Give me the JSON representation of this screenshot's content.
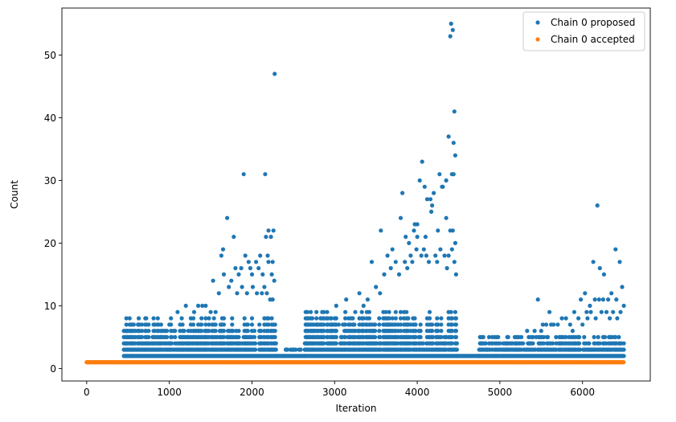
{
  "chart_data": {
    "type": "scatter",
    "xlabel": "Iteration",
    "ylabel": "Count",
    "xlim": [
      -300,
      6820
    ],
    "ylim": [
      -2,
      57.5
    ],
    "xticks": [
      0,
      1000,
      2000,
      3000,
      4000,
      5000,
      6000
    ],
    "yticks": [
      0,
      10,
      20,
      30,
      40,
      50
    ],
    "grid": false,
    "legend_position": "top-right",
    "series": [
      {
        "name": "Chain 0 proposed",
        "color": "#1f77b4",
        "points": [
          [
            1900,
            31
          ],
          [
            2160,
            31
          ],
          [
            2275,
            47
          ],
          [
            1700,
            24
          ],
          [
            1780,
            21
          ],
          [
            1650,
            19
          ],
          [
            1630,
            18
          ],
          [
            1530,
            14
          ],
          [
            1200,
            10
          ],
          [
            1400,
            10
          ],
          [
            2200,
            22
          ],
          [
            2260,
            22
          ],
          [
            2170,
            21
          ],
          [
            2230,
            21
          ],
          [
            2100,
            18
          ],
          [
            2190,
            18
          ],
          [
            1960,
            17
          ],
          [
            2050,
            17
          ],
          [
            2250,
            17
          ],
          [
            3560,
            22
          ],
          [
            3640,
            18
          ],
          [
            3700,
            19
          ],
          [
            3820,
            28
          ],
          [
            3800,
            24
          ],
          [
            3970,
            23
          ],
          [
            4000,
            23
          ],
          [
            4060,
            33
          ],
          [
            4030,
            30
          ],
          [
            4090,
            29
          ],
          [
            4120,
            27
          ],
          [
            4160,
            27
          ],
          [
            4180,
            26
          ],
          [
            4170,
            25
          ],
          [
            4270,
            31
          ],
          [
            4310,
            29
          ],
          [
            4350,
            24
          ],
          [
            4380,
            37
          ],
          [
            4400,
            53
          ],
          [
            4410,
            55
          ],
          [
            4430,
            54
          ],
          [
            4440,
            36
          ],
          [
            4450,
            41
          ],
          [
            4460,
            34
          ],
          [
            4350,
            30
          ],
          [
            4420,
            31
          ],
          [
            4440,
            31
          ],
          [
            4300,
            29
          ],
          [
            4200,
            28
          ],
          [
            4100,
            21
          ],
          [
            4000,
            21
          ],
          [
            4250,
            22
          ],
          [
            3960,
            22
          ],
          [
            3900,
            20
          ],
          [
            3860,
            21
          ],
          [
            4400,
            22
          ],
          [
            4430,
            22
          ],
          [
            4460,
            20
          ],
          [
            4380,
            18
          ],
          [
            3450,
            17
          ],
          [
            3300,
            12
          ],
          [
            3140,
            11
          ],
          [
            3020,
            10
          ],
          [
            2900,
            8
          ],
          [
            2680,
            8
          ],
          [
            2650,
            6
          ],
          [
            2720,
            6
          ],
          [
            2800,
            5
          ],
          [
            2410,
            3
          ],
          [
            2470,
            3
          ],
          [
            2570,
            3
          ],
          [
            2660,
            4
          ],
          [
            2780,
            7
          ],
          [
            2840,
            4
          ],
          [
            4760,
            2
          ],
          [
            4800,
            2
          ],
          [
            4850,
            3
          ],
          [
            4950,
            3
          ],
          [
            5000,
            4
          ],
          [
            5230,
            5
          ],
          [
            5420,
            6
          ],
          [
            5460,
            11
          ],
          [
            5600,
            9
          ],
          [
            5500,
            6
          ],
          [
            5700,
            7
          ],
          [
            5900,
            9
          ],
          [
            5980,
            11
          ],
          [
            6030,
            12
          ],
          [
            6090,
            10
          ],
          [
            6130,
            17
          ],
          [
            6180,
            26
          ],
          [
            6210,
            16
          ],
          [
            6260,
            15
          ],
          [
            6310,
            11
          ],
          [
            6400,
            19
          ],
          [
            6450,
            17
          ],
          [
            6480,
            13
          ],
          [
            6500,
            10
          ],
          [
            6410,
            11
          ],
          [
            6350,
            12
          ],
          [
            6250,
            11
          ],
          [
            6150,
            11
          ],
          [
            6200,
            11
          ],
          [
            6050,
            9
          ],
          [
            5800,
            8
          ],
          [
            5330,
            6
          ],
          [
            5150,
            4
          ],
          [
            5100,
            3
          ],
          [
            4900,
            4
          ],
          [
            4950,
            2
          ],
          [
            5050,
            2
          ],
          [
            1100,
            9
          ],
          [
            1150,
            8
          ],
          [
            1000,
            7
          ],
          [
            1050,
            6
          ],
          [
            900,
            5
          ],
          [
            800,
            5
          ],
          [
            760,
            4
          ],
          [
            680,
            4
          ],
          [
            700,
            3
          ],
          [
            650,
            3
          ],
          [
            550,
            2
          ],
          [
            480,
            2
          ],
          [
            1300,
            9
          ],
          [
            1350,
            10
          ],
          [
            1440,
            10
          ],
          [
            1500,
            9
          ],
          [
            1560,
            9
          ],
          [
            1600,
            12
          ],
          [
            1660,
            15
          ],
          [
            1720,
            13
          ],
          [
            1750,
            14
          ],
          [
            1800,
            16
          ],
          [
            1840,
            15
          ],
          [
            1870,
            16
          ],
          [
            1920,
            18
          ],
          [
            1980,
            16
          ],
          [
            2000,
            15
          ],
          [
            2080,
            16
          ],
          [
            2130,
            15
          ],
          [
            2150,
            13
          ],
          [
            2200,
            17
          ],
          [
            2240,
            15
          ],
          [
            2270,
            14
          ],
          [
            1820,
            12
          ],
          [
            1880,
            13
          ],
          [
            1940,
            12
          ],
          [
            2010,
            13
          ],
          [
            2060,
            12
          ],
          [
            2120,
            12
          ],
          [
            2180,
            12
          ],
          [
            2220,
            11
          ],
          [
            2250,
            11
          ],
          [
            3200,
            8
          ],
          [
            3250,
            9
          ],
          [
            3350,
            10
          ],
          [
            3400,
            11
          ],
          [
            3500,
            13
          ],
          [
            3550,
            12
          ],
          [
            3600,
            15
          ],
          [
            3680,
            16
          ],
          [
            3740,
            17
          ],
          [
            3780,
            15
          ],
          [
            3850,
            17
          ],
          [
            3880,
            16
          ],
          [
            3920,
            18
          ],
          [
            3940,
            17
          ],
          [
            3990,
            19
          ],
          [
            4050,
            18
          ],
          [
            4080,
            19
          ],
          [
            4110,
            18
          ],
          [
            4140,
            17
          ],
          [
            4220,
            18
          ],
          [
            4240,
            17
          ],
          [
            4280,
            19
          ],
          [
            4330,
            18
          ],
          [
            4360,
            16
          ],
          [
            4420,
            19
          ],
          [
            4450,
            17
          ],
          [
            4470,
            15
          ],
          [
            3150,
            6
          ],
          [
            3100,
            7
          ],
          [
            3050,
            7
          ],
          [
            2950,
            6
          ],
          [
            3080,
            5
          ],
          [
            3180,
            7
          ],
          [
            3230,
            7
          ],
          [
            3300,
            6
          ],
          [
            2870,
            5
          ],
          [
            2930,
            4
          ],
          [
            2990,
            4
          ],
          [
            5520,
            7
          ],
          [
            5560,
            7
          ],
          [
            5620,
            7
          ],
          [
            5650,
            7
          ],
          [
            5750,
            8
          ],
          [
            5850,
            7
          ],
          [
            5880,
            6
          ],
          [
            5950,
            8
          ],
          [
            6000,
            7
          ],
          [
            6060,
            8
          ],
          [
            6100,
            9
          ],
          [
            6160,
            8
          ],
          [
            6230,
            9
          ],
          [
            6290,
            9
          ],
          [
            6330,
            8
          ],
          [
            6370,
            9
          ],
          [
            6420,
            8
          ],
          [
            6460,
            9
          ],
          [
            5350,
            4
          ],
          [
            5380,
            4
          ],
          [
            5400,
            5
          ],
          [
            5440,
            5
          ],
          [
            5280,
            4
          ],
          [
            5200,
            3
          ],
          [
            5050,
            3
          ]
        ],
        "bands": [
          {
            "x_start": 450,
            "x_end": 2290,
            "min": 2,
            "max": 8,
            "note": "dense"
          },
          {
            "x_start": 2290,
            "x_end": 2390,
            "min": 2,
            "max": 2
          },
          {
            "x_start": 2390,
            "x_end": 2640,
            "min": 2,
            "max": 3
          },
          {
            "x_start": 2640,
            "x_end": 4480,
            "min": 2,
            "max": 9
          },
          {
            "x_start": 4480,
            "x_end": 4750,
            "min": 2,
            "max": 2
          },
          {
            "x_start": 4750,
            "x_end": 6500,
            "min": 2,
            "max": 5
          }
        ]
      },
      {
        "name": "Chain 0 accepted",
        "color": "#ff7f0e",
        "band": {
          "x_start": 0,
          "x_end": 6500,
          "value": 1
        }
      }
    ]
  }
}
